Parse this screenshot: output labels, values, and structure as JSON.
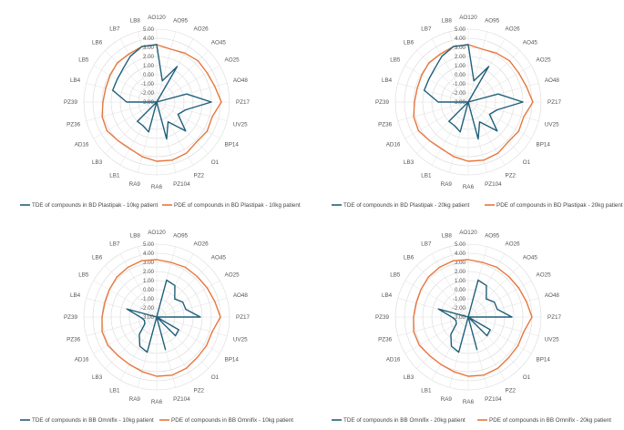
{
  "chart_data": [
    {
      "type": "radar",
      "categories": [
        "AO120",
        "AO95",
        "AO26",
        "AO45",
        "AO25",
        "AO48",
        "PZ17",
        "UV25",
        "BP14",
        "O1",
        "PZ2",
        "PZ104",
        "RA6",
        "RA9",
        "LB1",
        "LB3",
        "AD16",
        "PZ36",
        "PZ39",
        "LB4",
        "LB5",
        "LB6",
        "LB7",
        "LB8"
      ],
      "rticks": [
        "-3.00",
        "-2.00",
        "-1.00",
        "0.00",
        "1.00",
        "2.00",
        "3.00",
        "4.00",
        "5.00"
      ],
      "rlim": [
        -3,
        5
      ],
      "grid": true,
      "legend_position": "bottom",
      "series": [
        {
          "name": "TDE of compounds in BD Plastipak - 10kg patient",
          "color": "#1f5f7a",
          "values": [
            3.3,
            -0.6,
            1.5,
            -3.0,
            -3.0,
            0.4,
            3.0,
            0.3,
            -0.3,
            1.5,
            -0.5,
            1.2,
            -3.0,
            0.4,
            0.0,
            0.0,
            -3.0,
            -3.0,
            0.3,
            2.0,
            2.0,
            2.2,
            2.8,
            3.3
          ]
        },
        {
          "name": "PDE of compounds in BD Plastipak - 10kg patient",
          "color": "#e8763c",
          "values": [
            3.3,
            3.0,
            3.2,
            3.4,
            3.4,
            3.6,
            4.1,
            3.3,
            3.4,
            3.2,
            3.5,
            3.6,
            3.5,
            3.2,
            2.9,
            3.0,
            3.3,
            3.2,
            2.9,
            2.8,
            2.9,
            3.1,
            3.1,
            3.3
          ]
        }
      ]
    },
    {
      "type": "radar",
      "categories": [
        "AO120",
        "AO95",
        "AO26",
        "AO45",
        "AO25",
        "AO48",
        "PZ17",
        "UV25",
        "BP14",
        "O1",
        "PZ2",
        "PZ104",
        "RA6",
        "RA9",
        "LB1",
        "LB3",
        "AD16",
        "PZ36",
        "PZ39",
        "LB4",
        "LB5",
        "LB6",
        "LB7",
        "LB8"
      ],
      "rticks": [
        "-3.00",
        "-2.00",
        "-1.00",
        "0.00",
        "1.00",
        "2.00",
        "3.00",
        "4.00",
        "5.00"
      ],
      "rlim": [
        -3,
        5
      ],
      "grid": true,
      "legend_position": "bottom",
      "series": [
        {
          "name": "TDE of compounds in BD Plastipak - 20kg patient",
          "color": "#1f5f7a",
          "values": [
            3.3,
            -0.6,
            1.5,
            -3.0,
            -3.0,
            0.4,
            3.0,
            0.3,
            -0.3,
            1.5,
            -0.5,
            1.2,
            -3.0,
            0.4,
            0.0,
            0.0,
            -3.0,
            -3.0,
            0.3,
            2.0,
            2.0,
            2.2,
            2.8,
            3.3
          ]
        },
        {
          "name": "PDE of compounds in BD Plastipak - 20kg patient",
          "color": "#e8763c",
          "values": [
            3.3,
            3.0,
            3.2,
            3.4,
            3.4,
            3.6,
            4.1,
            3.3,
            3.4,
            3.2,
            3.5,
            3.6,
            3.5,
            3.2,
            2.9,
            3.0,
            3.3,
            3.2,
            2.9,
            2.8,
            2.9,
            3.1,
            3.1,
            3.3
          ]
        }
      ]
    },
    {
      "type": "radar",
      "categories": [
        "AO120",
        "AO95",
        "AO26",
        "AO45",
        "AO25",
        "AO48",
        "PZ17",
        "UV25",
        "BP14",
        "O1",
        "PZ2",
        "PZ104",
        "RA6",
        "RA9",
        "LB1",
        "LB3",
        "AD16",
        "PZ36",
        "PZ39",
        "LB4",
        "LB5",
        "LB6",
        "LB7",
        "LB8"
      ],
      "rticks": [
        "-3.00",
        "-2.00",
        "-1.00",
        "0.00",
        "1.00",
        "2.00",
        "3.00",
        "4.00",
        "5.00"
      ],
      "rlim": [
        -3,
        5
      ],
      "grid": true,
      "legend_position": "bottom",
      "series": [
        {
          "name": "TDE of compounds in BB Omnifix - 10kg patient",
          "color": "#1f5f7a",
          "values": [
            -3.0,
            1.2,
            1.0,
            -0.2,
            0.3,
            0.3,
            1.8,
            -3.0,
            -0.2,
            -0.1,
            -3.0,
            0.7,
            -3.0,
            1.0,
            0.7,
            -0.3,
            -1.5,
            -1.6,
            -1.2,
            0.4,
            -3.0,
            -3.0,
            -3.0,
            -3.0
          ]
        },
        {
          "name": "PDE of compounds in BB Omnifix - 10kg patient",
          "color": "#e8763c",
          "values": [
            3.3,
            3.2,
            3.3,
            3.3,
            3.4,
            3.6,
            4.0,
            3.3,
            3.3,
            3.3,
            3.5,
            3.6,
            3.5,
            3.2,
            3.0,
            3.0,
            3.2,
            3.2,
            3.0,
            2.9,
            3.0,
            3.2,
            3.3,
            3.4
          ]
        }
      ]
    },
    {
      "type": "radar",
      "categories": [
        "AO120",
        "AO95",
        "AO26",
        "AO45",
        "AO25",
        "AO48",
        "PZ17",
        "UV25",
        "BP14",
        "O1",
        "PZ2",
        "PZ104",
        "RA6",
        "RA9",
        "LB1",
        "LB3",
        "AD16",
        "PZ36",
        "PZ39",
        "LB4",
        "LB5",
        "LB6",
        "LB7",
        "LB8"
      ],
      "rticks": [
        "-3.00",
        "-2.00",
        "-1.00",
        "0.00",
        "1.00",
        "2.00",
        "3.00",
        "4.00",
        "5.00"
      ],
      "rlim": [
        -3,
        5
      ],
      "grid": true,
      "legend_position": "bottom",
      "series": [
        {
          "name": "TDE of compounds in BB Omnifix - 20kg patient",
          "color": "#1f5f7a",
          "values": [
            -3.0,
            1.2,
            1.0,
            -0.2,
            0.3,
            0.3,
            1.8,
            -3.0,
            -0.2,
            -0.1,
            -3.0,
            0.7,
            -3.0,
            1.0,
            0.7,
            -0.3,
            -1.5,
            -1.6,
            -1.2,
            0.4,
            -3.0,
            -3.0,
            -3.0,
            -3.0
          ]
        },
        {
          "name": "PDE of compounds in BB Omnifix - 20kg patient",
          "color": "#e8763c",
          "values": [
            3.3,
            3.2,
            3.3,
            3.3,
            3.4,
            3.6,
            4.0,
            3.3,
            3.3,
            3.3,
            3.5,
            3.6,
            3.5,
            3.2,
            3.0,
            3.0,
            3.2,
            3.2,
            3.0,
            2.9,
            3.0,
            3.2,
            3.3,
            3.4
          ]
        }
      ]
    }
  ]
}
